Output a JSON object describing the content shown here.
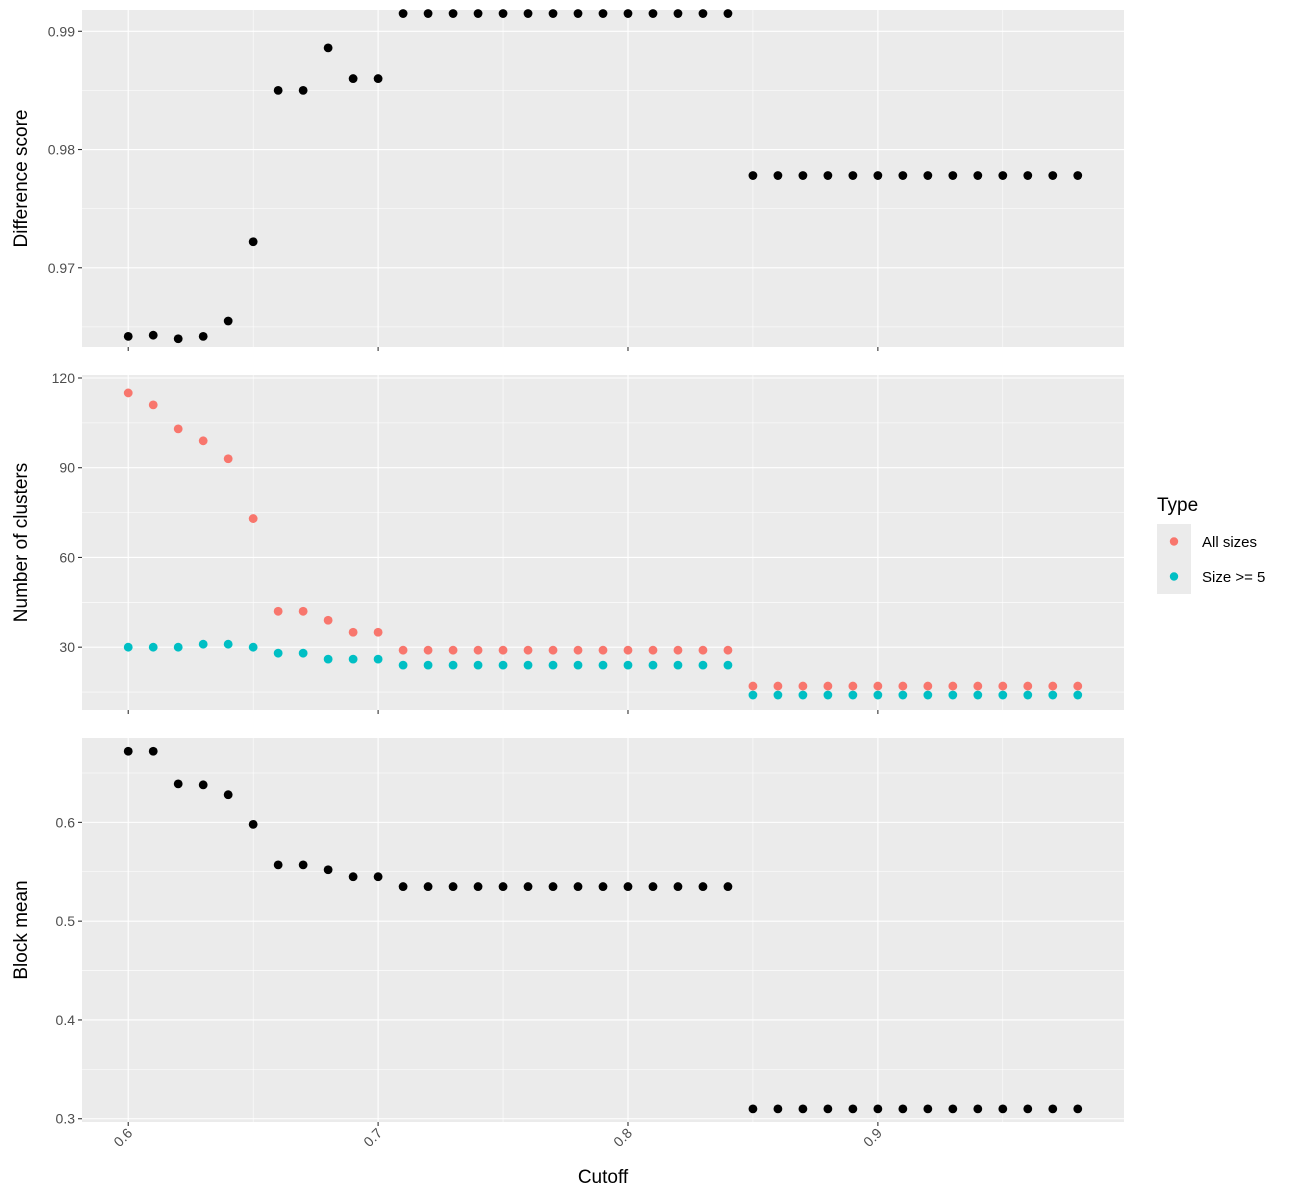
{
  "chart_data": {
    "type": "scatter",
    "layout": "three vertically stacked facets sharing the x axis",
    "grid": true,
    "legend_placement": "right, beside middle panel",
    "x": [
      0.6,
      0.61,
      0.62,
      0.63,
      0.64,
      0.65,
      0.66,
      0.67,
      0.68,
      0.69,
      0.7,
      0.71,
      0.72,
      0.73,
      0.74,
      0.75,
      0.76,
      0.77,
      0.78,
      0.79,
      0.8,
      0.81,
      0.82,
      0.83,
      0.84,
      0.85,
      0.86,
      0.87,
      0.88,
      0.89,
      0.9,
      0.91,
      0.92,
      0.93,
      0.94,
      0.95,
      0.96,
      0.97,
      0.98
    ],
    "xlabel": "Cutoff",
    "xlim": [
      0.5815,
      0.9985
    ],
    "xticks": [
      0.6,
      0.7,
      0.8,
      0.9
    ],
    "xtick_labels": [
      "0.6",
      "0.7",
      "0.8",
      "0.9"
    ],
    "panels": [
      {
        "ylabel": "Difference score",
        "ylim": [
          0.9633,
          0.9918
        ],
        "yticks": [
          0.97,
          0.98,
          0.99
        ],
        "ytick_labels": [
          "0.97",
          "0.98",
          "0.99"
        ],
        "series": [
          {
            "color": "#000000",
            "values": [
              0.9642,
              0.9643,
              0.964,
              0.9642,
              0.9655,
              0.9722,
              0.985,
              0.985,
              0.9886,
              0.986,
              0.986,
              0.9915,
              0.9915,
              0.9915,
              0.9915,
              0.9915,
              0.9915,
              0.9915,
              0.9915,
              0.9915,
              0.9915,
              0.9915,
              0.9915,
              0.9915,
              0.9915,
              0.9778,
              0.9778,
              0.9778,
              0.9778,
              0.9778,
              0.9778,
              0.9778,
              0.9778,
              0.9778,
              0.9778,
              0.9778,
              0.9778,
              0.9778,
              0.9778
            ]
          }
        ]
      },
      {
        "ylabel": "Number of clusters",
        "ylim": [
          9,
          121
        ],
        "yticks": [
          30,
          60,
          90,
          120
        ],
        "ytick_labels": [
          "30",
          "60",
          "90",
          "120"
        ],
        "series": [
          {
            "name": "All sizes",
            "color": "#F8766D",
            "values": [
              115,
              111,
              103,
              99,
              93,
              73,
              42,
              42,
              39,
              35,
              35,
              29,
              29,
              29,
              29,
              29,
              29,
              29,
              29,
              29,
              29,
              29,
              29,
              29,
              29,
              17,
              17,
              17,
              17,
              17,
              17,
              17,
              17,
              17,
              17,
              17,
              17,
              17,
              17
            ]
          },
          {
            "name": "Size >= 5",
            "color": "#00BFC4",
            "values": [
              30,
              30,
              30,
              31,
              31,
              30,
              28,
              28,
              26,
              26,
              26,
              24,
              24,
              24,
              24,
              24,
              24,
              24,
              24,
              24,
              24,
              24,
              24,
              24,
              24,
              14,
              14,
              14,
              14,
              14,
              14,
              14,
              14,
              14,
              14,
              14,
              14,
              14,
              14
            ]
          }
        ]
      },
      {
        "ylabel": "Block mean",
        "ylim": [
          0.2967,
          0.6854
        ],
        "yticks": [
          0.3,
          0.4,
          0.5,
          0.6
        ],
        "ytick_labels": [
          "0.3",
          "0.4",
          "0.5",
          "0.6"
        ],
        "series": [
          {
            "color": "#000000",
            "values": [
              0.672,
              0.672,
              0.639,
              0.638,
              0.628,
              0.598,
              0.557,
              0.557,
              0.552,
              0.545,
              0.545,
              0.535,
              0.535,
              0.535,
              0.535,
              0.535,
              0.535,
              0.535,
              0.535,
              0.535,
              0.535,
              0.535,
              0.535,
              0.535,
              0.535,
              0.31,
              0.31,
              0.31,
              0.31,
              0.31,
              0.31,
              0.31,
              0.31,
              0.31,
              0.31,
              0.31,
              0.31,
              0.31,
              0.31
            ]
          }
        ]
      }
    ],
    "legend": {
      "title": "Type",
      "items": [
        "All sizes",
        "Size >= 5"
      ],
      "colors": [
        "#F8766D",
        "#00BFC4"
      ]
    }
  }
}
